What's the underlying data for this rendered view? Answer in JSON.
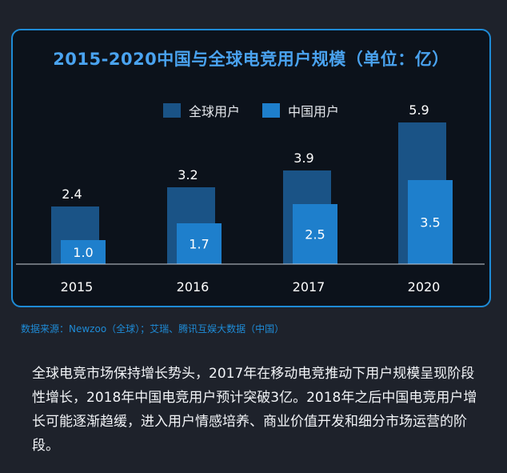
{
  "colors": {
    "global": "#1a5386",
    "china": "#1e7fcc",
    "title": "#4aa3f0",
    "border": "#1e8bd6",
    "source": "#1e8bd6"
  },
  "chart_data": {
    "type": "bar",
    "title": "2015-2020中国与全球电竞用户规模（单位：亿）",
    "categories": [
      "2015",
      "2016",
      "2017",
      "2020"
    ],
    "series": [
      {
        "name": "全球用户",
        "values": [
          2.4,
          3.2,
          3.9,
          5.9
        ]
      },
      {
        "name": "中国用户",
        "values": [
          1.0,
          1.7,
          2.5,
          3.5
        ]
      }
    ],
    "value_labels": {
      "global": [
        "2.4",
        "3.2",
        "3.9",
        "5.9"
      ],
      "china": [
        "1.0",
        "1.7",
        "2.5",
        "3.5"
      ]
    },
    "ylim": [
      0,
      6.0
    ],
    "grid": false,
    "legend": "top-center",
    "xlabel": "",
    "ylabel": ""
  },
  "footer": {
    "source": "数据来源：Newzoo（全球）；艾瑞、腾讯互娱大数据（中国）",
    "description": "全球电竞市场保持增长势头，2017年在移动电竞推动下用户规模呈现阶段性增长，2018年中国电竞用户预计突破3亿。2018年之后中国电竞用户增长可能逐渐趋缓，进入用户情感培养、商业价值开发和细分市场运营的阶段。"
  }
}
